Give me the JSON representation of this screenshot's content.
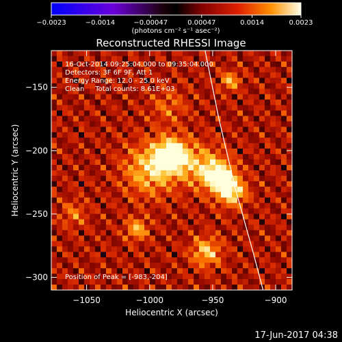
{
  "chart_data": {
    "type": "heatmap",
    "title": "Reconstructed RHESSI Image",
    "xlabel": "Heliocentric X (arcsec)",
    "ylabel": "Heliocentric Y (arcsec)",
    "xlim": [
      -1078,
      -887
    ],
    "ylim": [
      -310,
      -121
    ],
    "x_ticks": [
      {
        "v": -1050,
        "label": "−1050"
      },
      {
        "v": -1000,
        "label": "−1000"
      },
      {
        "v": -950,
        "label": "−950"
      },
      {
        "v": -900,
        "label": "−900"
      }
    ],
    "y_ticks": [
      {
        "v": -150,
        "label": "−150"
      },
      {
        "v": -200,
        "label": "−200"
      },
      {
        "v": -250,
        "label": "−250"
      },
      {
        "v": -300,
        "label": "−300"
      }
    ],
    "colorbar": {
      "range": [
        -0.0023,
        0.0023
      ],
      "ticks": [
        {
          "v": -0.0023,
          "label": "−0.0023"
        },
        {
          "v": -0.0014,
          "label": "−0.0014"
        },
        {
          "v": -0.00047,
          "label": "−0.00047"
        },
        {
          "v": 0.00047,
          "label": "0.00047"
        },
        {
          "v": 0.0014,
          "label": "0.0014"
        },
        {
          "v": 0.0023,
          "label": "0.0023"
        }
      ],
      "units": "(photons cm⁻² s⁻¹ asec⁻²)"
    },
    "annotations": [
      "16-Oct-2014 09:25:04.000 to 09:35:04.000",
      "Detectors: 3F 6F 9F, Att 1",
      "Energy Range: 12.0 - 25.0 keV",
      "Clean     Total counts: 8.61E+03"
    ],
    "peak_label": "Position of Peak = [-983,-204]",
    "peak": [
      -983,
      -204
    ],
    "sources": [
      {
        "x": -983,
        "y": -204,
        "amp": 1.0,
        "sigma": 9
      },
      {
        "x": -945,
        "y": -220,
        "amp": 0.85,
        "sigma": 8
      },
      {
        "x": -935,
        "y": -232,
        "amp": 0.7,
        "sigma": 8
      },
      {
        "x": -1000,
        "y": -215,
        "amp": 0.55,
        "sigma": 14
      },
      {
        "x": -960,
        "y": -212,
        "amp": 0.45,
        "sigma": 12
      },
      {
        "x": -1010,
        "y": -262,
        "amp": 0.5,
        "sigma": 6
      },
      {
        "x": -955,
        "y": -280,
        "amp": 0.55,
        "sigma": 8
      },
      {
        "x": -936,
        "y": -145,
        "amp": 0.5,
        "sigma": 5
      },
      {
        "x": -1060,
        "y": -250,
        "amp": 0.3,
        "sigma": 7
      },
      {
        "x": -985,
        "y": -165,
        "amp": 0.25,
        "sigma": 10
      }
    ],
    "limb_curve": [
      [
        -956,
        -121
      ],
      [
        -945,
        -175
      ],
      [
        -932,
        -230
      ],
      [
        -918,
        -280
      ],
      [
        -910,
        -310
      ]
    ]
  },
  "footer": {
    "timestamp": "17-Jun-2017 04:38"
  }
}
